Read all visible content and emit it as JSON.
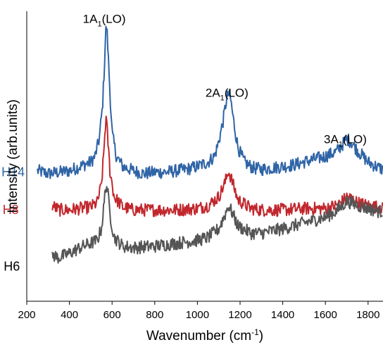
{
  "chart_data": {
    "type": "line",
    "xlabel": "Wavenumber (cm",
    "xlabel_sup": "-1",
    "xlabel_close": ")",
    "ylabel": "Intensity (arb.units)",
    "xlim": [
      200,
      1870
    ],
    "ylim": [
      0,
      1.0
    ],
    "xticks": [
      200,
      400,
      600,
      800,
      1000,
      1200,
      1400,
      1600,
      1800
    ],
    "grid": false,
    "y_tick_labels_shown": false,
    "annotations": [
      {
        "main": "1A",
        "sub": "1",
        "rest": "(LO)",
        "x": 570,
        "y": 0.975
      },
      {
        "main": "2A",
        "sub": "1",
        "rest": "(LO)",
        "x": 1145,
        "y": 0.72
      },
      {
        "main": "3A",
        "sub": "1",
        "rest": "(LO)",
        "x": 1700,
        "y": 0.56
      }
    ],
    "series": [
      {
        "name": "H14",
        "color": "#2f64a6",
        "label_at": {
          "x": 260,
          "y": 0.445
        },
        "points": [
          [
            250,
            0.45
          ],
          [
            300,
            0.44
          ],
          [
            350,
            0.445
          ],
          [
            400,
            0.45
          ],
          [
            450,
            0.465
          ],
          [
            500,
            0.48
          ],
          [
            520,
            0.5
          ],
          [
            540,
            0.56
          ],
          [
            555,
            0.67
          ],
          [
            565,
            0.83
          ],
          [
            570,
            0.93
          ],
          [
            575,
            0.95
          ],
          [
            580,
            0.88
          ],
          [
            590,
            0.72
          ],
          [
            600,
            0.58
          ],
          [
            620,
            0.5
          ],
          [
            650,
            0.465
          ],
          [
            700,
            0.45
          ],
          [
            750,
            0.44
          ],
          [
            800,
            0.445
          ],
          [
            850,
            0.445
          ],
          [
            900,
            0.45
          ],
          [
            950,
            0.455
          ],
          [
            1000,
            0.465
          ],
          [
            1050,
            0.48
          ],
          [
            1080,
            0.5
          ],
          [
            1100,
            0.55
          ],
          [
            1120,
            0.62
          ],
          [
            1135,
            0.69
          ],
          [
            1145,
            0.715
          ],
          [
            1155,
            0.7
          ],
          [
            1170,
            0.62
          ],
          [
            1190,
            0.53
          ],
          [
            1220,
            0.48
          ],
          [
            1260,
            0.46
          ],
          [
            1300,
            0.455
          ],
          [
            1350,
            0.46
          ],
          [
            1400,
            0.465
          ],
          [
            1450,
            0.47
          ],
          [
            1500,
            0.48
          ],
          [
            1550,
            0.49
          ],
          [
            1600,
            0.5
          ],
          [
            1650,
            0.515
          ],
          [
            1680,
            0.54
          ],
          [
            1700,
            0.56
          ],
          [
            1720,
            0.55
          ],
          [
            1750,
            0.52
          ],
          [
            1800,
            0.48
          ],
          [
            1850,
            0.46
          ],
          [
            1870,
            0.455
          ]
        ]
      },
      {
        "name": "H8",
        "color": "#c1272d",
        "label_at": {
          "x": 265,
          "y": 0.315
        },
        "points": [
          [
            320,
            0.33
          ],
          [
            350,
            0.315
          ],
          [
            400,
            0.315
          ],
          [
            450,
            0.32
          ],
          [
            500,
            0.325
          ],
          [
            530,
            0.34
          ],
          [
            550,
            0.4
          ],
          [
            560,
            0.5
          ],
          [
            568,
            0.6
          ],
          [
            572,
            0.63
          ],
          [
            578,
            0.58
          ],
          [
            590,
            0.45
          ],
          [
            610,
            0.36
          ],
          [
            650,
            0.325
          ],
          [
            700,
            0.315
          ],
          [
            800,
            0.315
          ],
          [
            900,
            0.315
          ],
          [
            1000,
            0.32
          ],
          [
            1050,
            0.33
          ],
          [
            1100,
            0.36
          ],
          [
            1130,
            0.41
          ],
          [
            1145,
            0.45
          ],
          [
            1160,
            0.42
          ],
          [
            1190,
            0.35
          ],
          [
            1250,
            0.32
          ],
          [
            1300,
            0.315
          ],
          [
            1400,
            0.315
          ],
          [
            1500,
            0.32
          ],
          [
            1600,
            0.32
          ],
          [
            1650,
            0.33
          ],
          [
            1680,
            0.345
          ],
          [
            1700,
            0.36
          ],
          [
            1720,
            0.355
          ],
          [
            1750,
            0.34
          ],
          [
            1800,
            0.33
          ],
          [
            1850,
            0.325
          ],
          [
            1870,
            0.32
          ]
        ]
      },
      {
        "name": "H6",
        "color": "#555555",
        "label_at": {
          "x": 270,
          "y": 0.12
        },
        "points": [
          [
            320,
            0.16
          ],
          [
            350,
            0.15
          ],
          [
            400,
            0.165
          ],
          [
            450,
            0.185
          ],
          [
            500,
            0.2
          ],
          [
            530,
            0.21
          ],
          [
            550,
            0.25
          ],
          [
            562,
            0.33
          ],
          [
            570,
            0.4
          ],
          [
            578,
            0.39
          ],
          [
            590,
            0.3
          ],
          [
            610,
            0.22
          ],
          [
            650,
            0.19
          ],
          [
            700,
            0.185
          ],
          [
            800,
            0.19
          ],
          [
            900,
            0.2
          ],
          [
            1000,
            0.21
          ],
          [
            1050,
            0.22
          ],
          [
            1100,
            0.25
          ],
          [
            1130,
            0.3
          ],
          [
            1145,
            0.33
          ],
          [
            1160,
            0.31
          ],
          [
            1190,
            0.26
          ],
          [
            1250,
            0.235
          ],
          [
            1300,
            0.235
          ],
          [
            1400,
            0.25
          ],
          [
            1500,
            0.27
          ],
          [
            1600,
            0.29
          ],
          [
            1650,
            0.31
          ],
          [
            1680,
            0.33
          ],
          [
            1700,
            0.345
          ],
          [
            1720,
            0.34
          ],
          [
            1750,
            0.33
          ],
          [
            1800,
            0.32
          ],
          [
            1850,
            0.31
          ],
          [
            1870,
            0.31
          ]
        ]
      }
    ]
  }
}
